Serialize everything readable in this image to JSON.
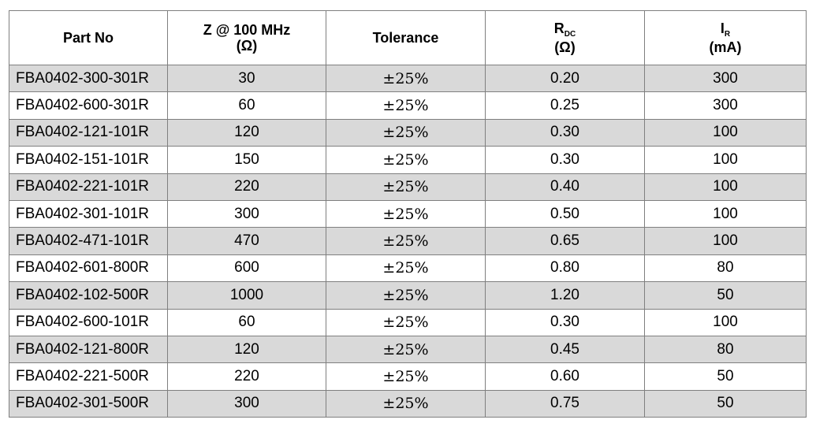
{
  "headers": {
    "part_no": "Part No",
    "z_line1": "Z @ 100 MHz",
    "z_line2": "(Ω)",
    "tolerance": "Tolerance",
    "rdc_main": "R",
    "rdc_sub": "DC",
    "rdc_unit": "(Ω)",
    "ir_main": "I",
    "ir_sub": "R",
    "ir_unit": "(mA)"
  },
  "rows": [
    {
      "part": "FBA0402-300-301R",
      "z": "30",
      "tol": "±25%",
      "rdc": "0.20",
      "ir": "300"
    },
    {
      "part": "FBA0402-600-301R",
      "z": "60",
      "tol": "±25%",
      "rdc": "0.25",
      "ir": "300"
    },
    {
      "part": "FBA0402-121-101R",
      "z": "120",
      "tol": "±25%",
      "rdc": "0.30",
      "ir": "100"
    },
    {
      "part": "FBA0402-151-101R",
      "z": "150",
      "tol": "±25%",
      "rdc": "0.30",
      "ir": "100"
    },
    {
      "part": "FBA0402-221-101R",
      "z": "220",
      "tol": "±25%",
      "rdc": "0.40",
      "ir": "100"
    },
    {
      "part": "FBA0402-301-101R",
      "z": "300",
      "tol": "±25%",
      "rdc": "0.50",
      "ir": "100"
    },
    {
      "part": "FBA0402-471-101R",
      "z": "470",
      "tol": "±25%",
      "rdc": "0.65",
      "ir": "100"
    },
    {
      "part": "FBA0402-601-800R",
      "z": "600",
      "tol": "±25%",
      "rdc": "0.80",
      "ir": "80"
    },
    {
      "part": "FBA0402-102-500R",
      "z": "1000",
      "tol": "±25%",
      "rdc": "1.20",
      "ir": "50"
    },
    {
      "part": "FBA0402-600-101R",
      "z": "60",
      "tol": "±25%",
      "rdc": "0.30",
      "ir": "100"
    },
    {
      "part": "FBA0402-121-800R",
      "z": "120",
      "tol": "±25%",
      "rdc": "0.45",
      "ir": "80"
    },
    {
      "part": "FBA0402-221-500R",
      "z": "220",
      "tol": "±25%",
      "rdc": "0.60",
      "ir": "50"
    },
    {
      "part": "FBA0402-301-500R",
      "z": "300",
      "tol": "±25%",
      "rdc": "0.75",
      "ir": "50"
    }
  ],
  "colors": {
    "shaded_row": "#d9d9d9",
    "plain_row": "#ffffff",
    "border": "#7f7f7f"
  }
}
